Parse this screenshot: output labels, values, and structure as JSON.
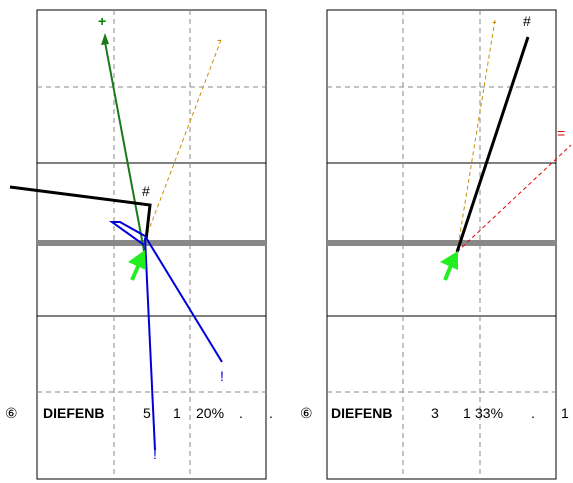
{
  "panels": [
    {
      "id": "left",
      "circled_number": "⑥",
      "name": "DIEFENB",
      "num1": "5",
      "num2": "1",
      "percent": "20%",
      "dot1": ".",
      "dot2": ".",
      "labels": {
        "plus": "+",
        "dash": "-",
        "hash": "#",
        "excl_a": "!",
        "excl_b": "!"
      }
    },
    {
      "id": "right",
      "circled_number": "⑥",
      "name": "DIEFENB",
      "num1": "3",
      "num2": "1",
      "percent": "33%",
      "dot1": ".",
      "trail": "1",
      "labels": {
        "dash": "-",
        "hash": "#",
        "equals": "="
      }
    }
  ],
  "colors": {
    "frame": "#000000",
    "grid_dashed": "#8a8a8a",
    "baseline": "#888888",
    "green_line": "#1a7a1a",
    "green_label": "#008000",
    "blue": "#0000dd",
    "orange_dashed": "#c8900a",
    "red_dashed": "#e00000",
    "arrow_green": "#22ee22",
    "black": "#000000"
  }
}
